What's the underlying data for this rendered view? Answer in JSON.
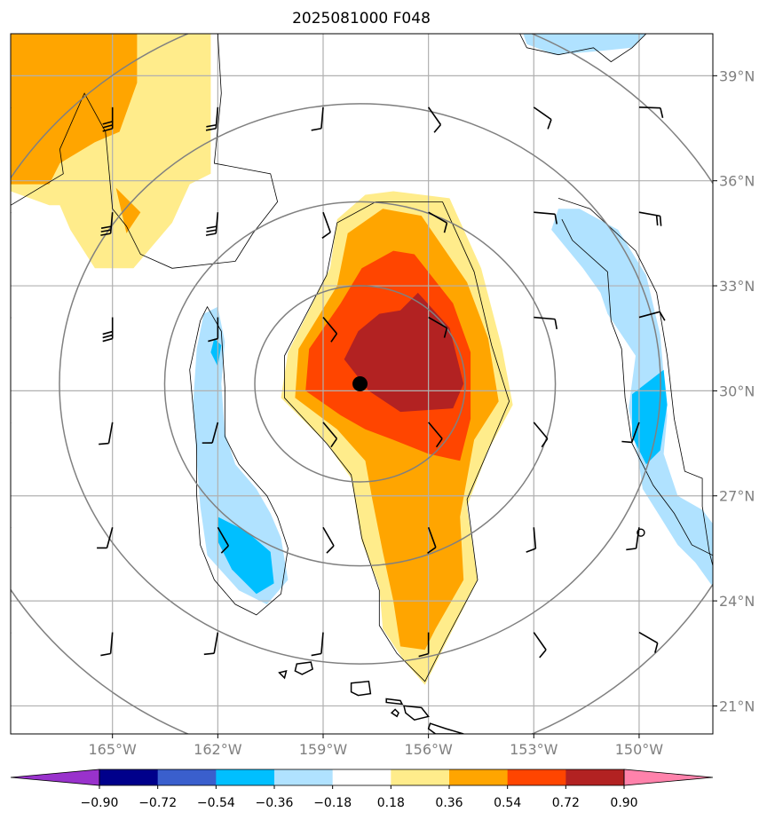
{
  "chart_data": {
    "type": "heatmap",
    "title": "2025081000 F048",
    "grid": true,
    "x_ticks": [
      "165°W",
      "162°W",
      "159°W",
      "156°W",
      "153°W",
      "150°W"
    ],
    "x_tick_values": [
      -165,
      -162,
      -159,
      -156,
      -153,
      -150
    ],
    "y_ticks": [
      "39°N",
      "36°N",
      "33°N",
      "30°N",
      "27°N",
      "24°N",
      "21°N"
    ],
    "y_tick_values": [
      39,
      36,
      33,
      30,
      27,
      24,
      21
    ],
    "xlim": [
      -167.9,
      -147.9
    ],
    "ylim": [
      20.2,
      40.2
    ],
    "colorbar": {
      "levels": [
        -0.9,
        -0.72,
        -0.54,
        -0.36,
        -0.18,
        0.18,
        0.36,
        0.54,
        0.72,
        0.9
      ],
      "labels": [
        "−0.90",
        "−0.72",
        "−0.54",
        "−0.36",
        "−0.18",
        "0.18",
        "0.36",
        "0.54",
        "0.72",
        "0.90"
      ],
      "colors": [
        "#9932cc",
        "#00008b",
        "#3a5fcd",
        "#00bfff",
        "#b0e2ff",
        "#ffffff",
        "#ffec8b",
        "#ffa500",
        "#ff4500",
        "#b22222",
        "#ff82ab"
      ]
    },
    "center_marker": {
      "lon": -157.95,
      "lat": 30.2
    },
    "distance_ring_center": {
      "lon": -157.95,
      "lat": 30.2
    },
    "distance_rings_deg": [
      2.8,
      5.2,
      8.0,
      11.0
    ],
    "small_circle_marker": {
      "lon": -149.95,
      "lat": 25.95
    }
  }
}
